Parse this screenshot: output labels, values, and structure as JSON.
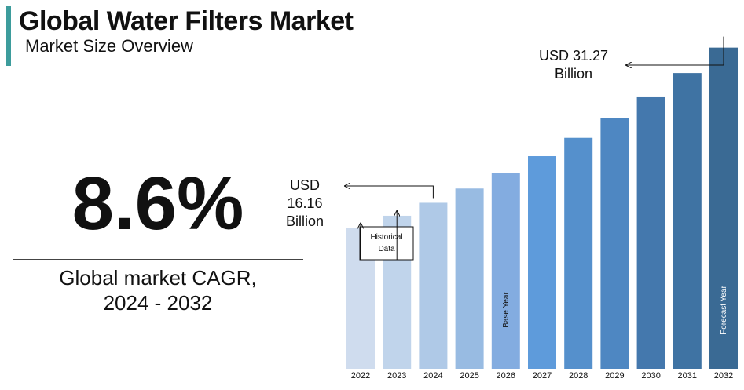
{
  "header": {
    "title": "Global Water Filters Market",
    "subtitle": "Market Size Overview"
  },
  "kpi": {
    "cagr_value": "8.6%",
    "cagr_label_line1": "Global market CAGR,",
    "cagr_label_line2": "2024 - 2032"
  },
  "annotations": {
    "historical_label": [
      "Historical",
      "Data"
    ],
    "start_value_label": [
      "USD",
      "16.16",
      "Billion"
    ],
    "end_value_label": [
      "USD 31.27",
      "Billion"
    ],
    "base_year_label": "Base Year",
    "forecast_year_label": "Forecast Year"
  },
  "colors": {
    "accent": "#3d9c9c",
    "bars": [
      "#cfdcee",
      "#c0d4eb",
      "#afc9e7",
      "#98bbe2",
      "#83ace0",
      "#5e9bdb",
      "#5590cc",
      "#4e87c2",
      "#4478ad",
      "#3f73a3",
      "#3a6a94"
    ]
  },
  "chart_data": {
    "type": "bar",
    "categories": [
      "2022",
      "2023",
      "2024",
      "2025",
      "2026",
      "2027",
      "2028",
      "2029",
      "2030",
      "2031",
      "2032"
    ],
    "values": [
      13.7,
      14.9,
      16.16,
      17.55,
      19.06,
      20.7,
      22.48,
      24.41,
      26.51,
      28.79,
      31.27
    ],
    "ylim": [
      0,
      33
    ],
    "base_year": "2026",
    "forecast_year": "2032",
    "grid": false,
    "legend": "none"
  }
}
